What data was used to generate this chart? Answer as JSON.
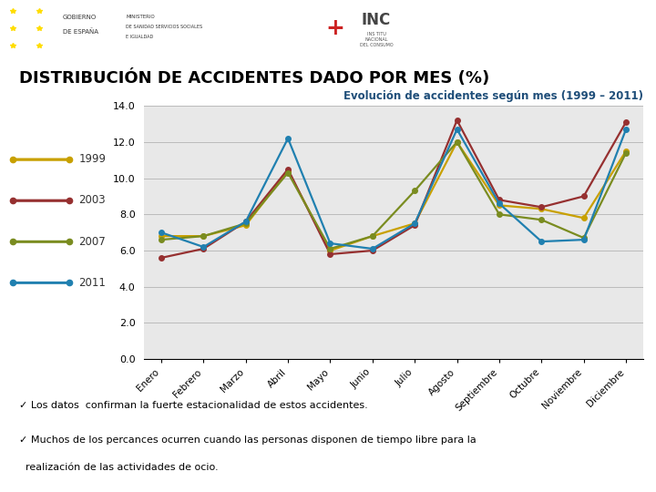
{
  "title": "DISTRIBUCIÓN DE ACCIDENTES DADO POR MES (%)",
  "subtitle": "Evolución de accidentes según mes (1999 – 2011)",
  "months": [
    "Enero",
    "Febrero",
    "Marzo",
    "Abril",
    "Mayo",
    "Junio",
    "Julio",
    "Agosto",
    "Septiembre",
    "Octubre",
    "Noviembre",
    "Diciembre"
  ],
  "series": [
    {
      "label": "1999",
      "color": "#C8A000",
      "values": [
        6.8,
        6.8,
        7.4,
        10.4,
        6.0,
        6.8,
        7.5,
        12.0,
        8.5,
        8.3,
        7.8,
        11.5
      ]
    },
    {
      "label": "2003",
      "color": "#963030",
      "values": [
        5.6,
        6.1,
        7.6,
        10.5,
        5.8,
        6.0,
        7.4,
        13.2,
        8.8,
        8.4,
        9.0,
        13.1
      ]
    },
    {
      "label": "2007",
      "color": "#7A8C20",
      "values": [
        6.6,
        6.8,
        7.5,
        10.3,
        6.1,
        6.8,
        9.3,
        12.0,
        8.0,
        7.7,
        6.7,
        11.4
      ]
    },
    {
      "label": "2011",
      "color": "#2080B0",
      "values": [
        7.0,
        6.2,
        7.6,
        12.2,
        6.4,
        6.1,
        7.5,
        12.7,
        8.6,
        6.5,
        6.6,
        12.7
      ]
    }
  ],
  "ylim": [
    0.0,
    14.0
  ],
  "yticks": [
    0.0,
    2.0,
    4.0,
    6.0,
    8.0,
    10.0,
    12.0,
    14.0
  ],
  "grid_color": "#BBBBBB",
  "bg_color": "#E8E8E8",
  "title_color": "#000000",
  "subtitle_color": "#1F4E79",
  "footnote1": "✓ Los datos  confirman la fuerte estacionalidad de estos accidentes.",
  "footnote2": "✓ Muchos de los percances ocurren cuando las personas disponen de tiempo libre para la",
  "footnote2b": "  realización de las actividades de ocio.",
  "header_orange_color": "#F5A800",
  "header_gray_color": "#C8C8C8",
  "separator_color": "#DAA520"
}
